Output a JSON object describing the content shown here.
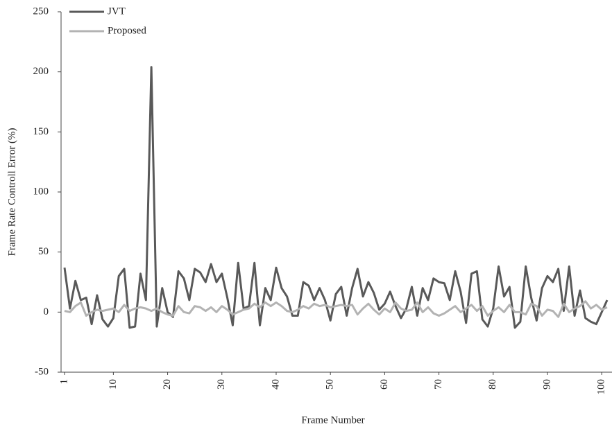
{
  "chart_data": {
    "type": "line",
    "xlabel": "Frame Number",
    "ylabel": "Frame Rate Controll Error (%)",
    "x": [
      1,
      2,
      3,
      4,
      5,
      6,
      7,
      8,
      9,
      10,
      11,
      12,
      13,
      14,
      15,
      16,
      17,
      18,
      19,
      20,
      21,
      22,
      23,
      24,
      25,
      26,
      27,
      28,
      29,
      30,
      31,
      32,
      33,
      34,
      35,
      36,
      37,
      38,
      39,
      40,
      41,
      42,
      43,
      44,
      45,
      46,
      47,
      48,
      49,
      50,
      51,
      52,
      53,
      54,
      55,
      56,
      57,
      58,
      59,
      60,
      61,
      62,
      63,
      64,
      65,
      66,
      67,
      68,
      69,
      70,
      71,
      72,
      73,
      74,
      75,
      76,
      77,
      78,
      79,
      80,
      81,
      82,
      83,
      84,
      85,
      86,
      87,
      88,
      89,
      90,
      91,
      92,
      93,
      94,
      95,
      96,
      97,
      98,
      99,
      100,
      101
    ],
    "series": [
      {
        "name": "JVT",
        "color": "#595959",
        "values": [
          37,
          3,
          26,
          10,
          12,
          -10,
          14,
          -6,
          -12,
          -5,
          30,
          36,
          -13,
          -12,
          32,
          10,
          204,
          -12,
          20,
          0,
          -4,
          34,
          28,
          10,
          36,
          33,
          25,
          40,
          25,
          32,
          12,
          -11,
          41,
          3,
          5,
          41,
          -11,
          20,
          10,
          37,
          20,
          13,
          -3,
          -3,
          25,
          22,
          10,
          20,
          10,
          -7,
          15,
          21,
          -3,
          20,
          36,
          13,
          25,
          16,
          2,
          7,
          17,
          5,
          -5,
          3,
          21,
          -3,
          20,
          10,
          28,
          25,
          24,
          10,
          34,
          17,
          -9,
          32,
          34,
          -6,
          -12,
          3,
          38,
          13,
          21,
          -13,
          -8,
          38,
          12,
          -7,
          20,
          30,
          25,
          36,
          1,
          38,
          -3,
          18,
          -5,
          -8,
          -10,
          0,
          10
        ]
      },
      {
        "name": "Proposed",
        "color": "#b3b3b3",
        "values": [
          1,
          0,
          5,
          8,
          -3,
          0,
          2,
          1,
          2,
          3,
          0,
          6,
          1,
          3,
          4,
          3,
          1,
          3,
          0,
          -2,
          -3,
          5,
          0,
          -1,
          5,
          4,
          1,
          4,
          0,
          5,
          2,
          -2,
          0,
          2,
          3,
          7,
          4,
          8,
          5,
          8,
          5,
          1,
          0,
          2,
          5,
          3,
          7,
          5,
          6,
          4,
          5,
          6,
          5,
          6,
          -2,
          3,
          7,
          2,
          -2,
          3,
          0,
          8,
          3,
          1,
          2,
          8,
          0,
          4,
          -1,
          -3,
          -1,
          2,
          5,
          0,
          3,
          6,
          1,
          5,
          -3,
          1,
          4,
          0,
          6,
          0,
          0,
          -2,
          7,
          5,
          -3,
          2,
          1,
          -4,
          7,
          0,
          3,
          5,
          9,
          3,
          6,
          2,
          4
        ]
      }
    ],
    "xlim": [
      1,
      101
    ],
    "xticks": [
      1,
      10,
      20,
      30,
      40,
      50,
      60,
      70,
      80,
      90,
      100
    ],
    "ylim": [
      -50,
      250
    ],
    "yticks": [
      -50,
      0,
      50,
      100,
      150,
      200,
      250
    ],
    "grid": false,
    "legend": "top-left"
  }
}
